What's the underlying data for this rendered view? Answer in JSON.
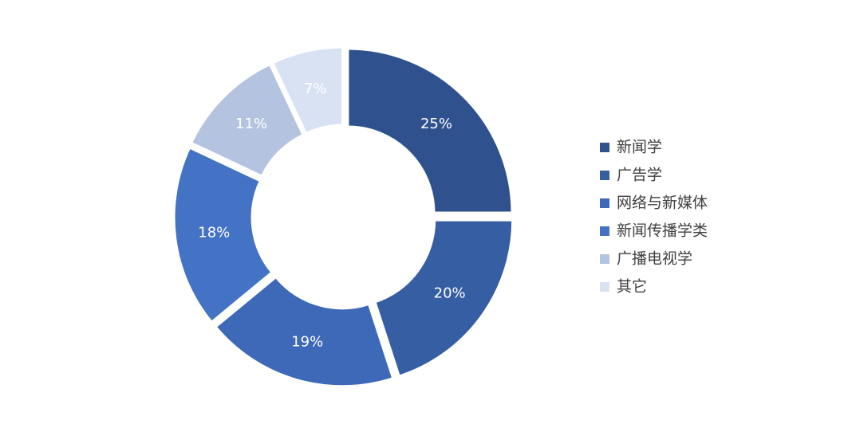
{
  "chart_data": {
    "type": "donut",
    "categories": [
      "新闻学",
      "广告学",
      "网络与新媒体",
      "新闻传播学类",
      "广播电视学",
      "其它"
    ],
    "values": [
      25,
      20,
      19,
      18,
      11,
      7
    ],
    "value_labels": [
      "25%",
      "20%",
      "19%",
      "18%",
      "11%",
      "7%"
    ],
    "colors": [
      "#2f528f",
      "#365ea3",
      "#3d69b8",
      "#4472c4",
      "#b4c3df",
      "#d9e2f3"
    ],
    "legend": "right"
  }
}
